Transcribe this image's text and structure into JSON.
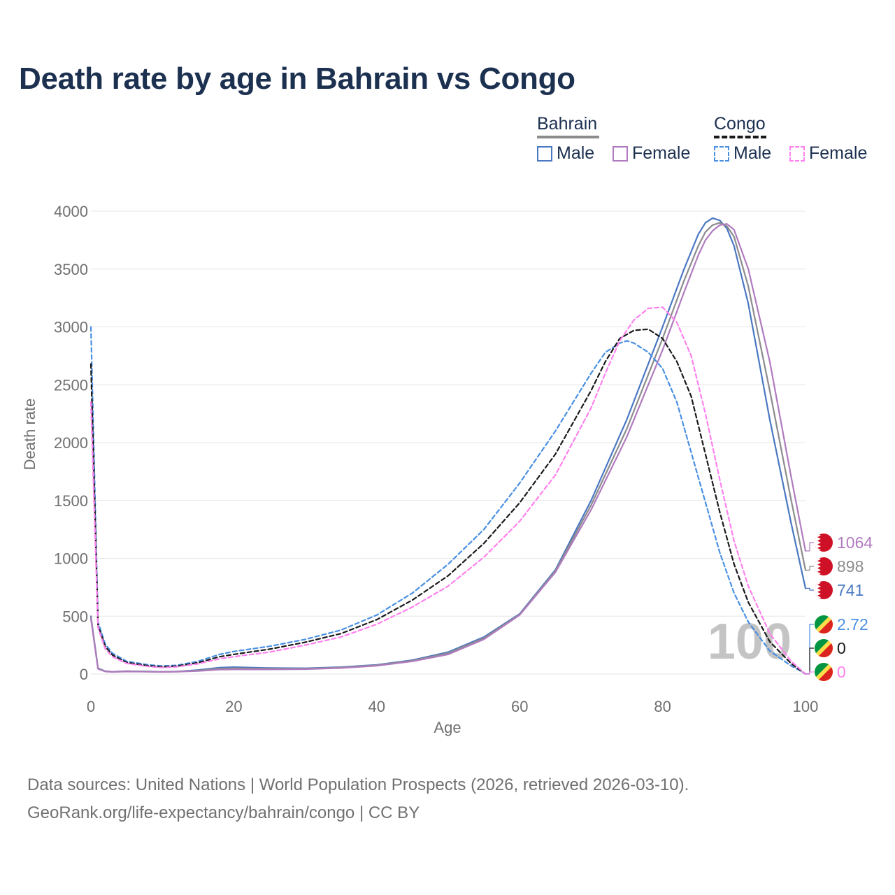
{
  "title": "Death rate by age in Bahrain vs Congo",
  "legend": {
    "groups": [
      {
        "name": "Bahrain",
        "items": [
          "Male",
          "Female"
        ]
      },
      {
        "name": "Congo",
        "items": [
          "Male",
          "Female"
        ]
      }
    ]
  },
  "footer": {
    "line1": "Data sources: United Nations | World Population Prospects (2026, retrieved 2026-03-10).",
    "line2": "GeoRank.org/life-expectancy/bahrain/congo | CC BY"
  },
  "chart_data": {
    "type": "line",
    "title": "Death rate by age in Bahrain vs Congo",
    "xlabel": "Age",
    "ylabel": "Death rate",
    "xlim": [
      0,
      100
    ],
    "ylim": [
      0,
      4000
    ],
    "xticks": [
      "0",
      "20",
      "40",
      "60",
      "80",
      "100"
    ],
    "yticks": [
      "0",
      "500",
      "1000",
      "1500",
      "2000",
      "2500",
      "3000",
      "3500",
      "4000"
    ],
    "watermark": "100",
    "series": [
      {
        "name": "Bahrain Male",
        "country": "Bahrain",
        "sex": "Male",
        "color": "#4a78c2",
        "dash": false,
        "x": [
          0,
          1,
          2,
          3,
          5,
          8,
          10,
          12,
          15,
          18,
          20,
          25,
          30,
          35,
          40,
          45,
          50,
          55,
          60,
          65,
          70,
          75,
          80,
          83,
          85,
          86,
          87,
          88,
          89,
          90,
          92,
          95,
          98,
          100
        ],
        "y": [
          500,
          50,
          25,
          20,
          25,
          22,
          20,
          22,
          35,
          55,
          60,
          52,
          50,
          60,
          80,
          120,
          190,
          320,
          520,
          900,
          1500,
          2200,
          3000,
          3500,
          3800,
          3900,
          3940,
          3920,
          3850,
          3700,
          3200,
          2200,
          1300,
          741
        ],
        "end_label": "741"
      },
      {
        "name": "Bahrain Total",
        "country": "Bahrain",
        "sex": "Total",
        "color": "#8c8c8c",
        "dash": false,
        "x": [
          0,
          1,
          2,
          3,
          5,
          8,
          10,
          12,
          15,
          18,
          20,
          25,
          30,
          35,
          40,
          45,
          50,
          55,
          60,
          65,
          70,
          75,
          80,
          83,
          85,
          86,
          87,
          88,
          89,
          90,
          92,
          95,
          98,
          100
        ],
        "y": [
          490,
          48,
          24,
          20,
          24,
          21,
          19,
          21,
          30,
          46,
          50,
          46,
          46,
          56,
          76,
          115,
          180,
          310,
          515,
          890,
          1460,
          2120,
          2900,
          3400,
          3700,
          3820,
          3880,
          3900,
          3870,
          3780,
          3350,
          2450,
          1500,
          898
        ],
        "end_label": "898"
      },
      {
        "name": "Bahrain Female",
        "country": "Bahrain",
        "sex": "Female",
        "color": "#b07bbf",
        "dash": false,
        "x": [
          0,
          1,
          2,
          3,
          5,
          8,
          10,
          12,
          15,
          18,
          20,
          25,
          30,
          35,
          40,
          45,
          50,
          55,
          60,
          65,
          70,
          75,
          80,
          83,
          85,
          86,
          87,
          88,
          89,
          90,
          92,
          95,
          98,
          100
        ],
        "y": [
          480,
          45,
          22,
          18,
          22,
          20,
          18,
          20,
          26,
          38,
          40,
          40,
          42,
          52,
          72,
          110,
          170,
          300,
          510,
          880,
          1420,
          2050,
          2800,
          3300,
          3620,
          3750,
          3830,
          3880,
          3890,
          3840,
          3500,
          2700,
          1700,
          1064
        ],
        "end_label": "1064"
      },
      {
        "name": "Congo Male",
        "country": "Congo",
        "sex": "Male",
        "color": "#4a90e2",
        "dash": true,
        "x": [
          0,
          1,
          2,
          3,
          5,
          8,
          10,
          12,
          15,
          18,
          20,
          25,
          30,
          35,
          40,
          45,
          50,
          55,
          60,
          65,
          70,
          72,
          74,
          75,
          76,
          78,
          80,
          82,
          85,
          88,
          90,
          92,
          95,
          98,
          100
        ],
        "y": [
          3000,
          450,
          260,
          180,
          110,
          80,
          70,
          75,
          110,
          170,
          195,
          240,
          300,
          380,
          510,
          700,
          950,
          1250,
          1650,
          2100,
          2600,
          2780,
          2860,
          2880,
          2860,
          2780,
          2640,
          2350,
          1700,
          1050,
          700,
          450,
          200,
          70,
          2.72
        ],
        "end_label": "2.72"
      },
      {
        "name": "Congo Total",
        "country": "Congo",
        "sex": "Total",
        "color": "#1a1a1a",
        "dash": true,
        "x": [
          0,
          1,
          2,
          3,
          5,
          8,
          10,
          12,
          15,
          18,
          20,
          25,
          30,
          35,
          40,
          45,
          50,
          55,
          60,
          65,
          70,
          72,
          74,
          76,
          78,
          80,
          82,
          84,
          86,
          88,
          90,
          92,
          95,
          98,
          100
        ],
        "y": [
          2680,
          420,
          240,
          165,
          100,
          72,
          62,
          68,
          98,
          150,
          170,
          215,
          275,
          350,
          470,
          640,
          850,
          1130,
          1480,
          1900,
          2450,
          2700,
          2900,
          2970,
          2980,
          2900,
          2700,
          2400,
          1900,
          1400,
          950,
          620,
          280,
          90,
          0
        ],
        "end_label": "0"
      },
      {
        "name": "Congo Female",
        "country": "Congo",
        "sex": "Female",
        "color": "#ff80ee",
        "dash": true,
        "x": [
          0,
          1,
          2,
          3,
          5,
          8,
          10,
          12,
          15,
          18,
          20,
          25,
          30,
          35,
          40,
          45,
          50,
          55,
          60,
          65,
          70,
          72,
          74,
          76,
          78,
          80,
          82,
          84,
          86,
          88,
          90,
          92,
          95,
          98,
          100
        ],
        "y": [
          2350,
          400,
          220,
          150,
          92,
          65,
          56,
          62,
          88,
          132,
          150,
          190,
          250,
          320,
          430,
          580,
          760,
          1010,
          1320,
          1720,
          2300,
          2600,
          2880,
          3060,
          3160,
          3170,
          3040,
          2750,
          2250,
          1680,
          1150,
          760,
          350,
          110,
          0
        ],
        "end_label": "0"
      }
    ]
  },
  "colors": {
    "title": "#1c3050",
    "axis_text": "#707070",
    "grid": "#e6e6e6",
    "bahrain_flag": "#ce1126",
    "congo_green": "#009543",
    "congo_yellow": "#fbde4a",
    "congo_red": "#dc241f"
  }
}
